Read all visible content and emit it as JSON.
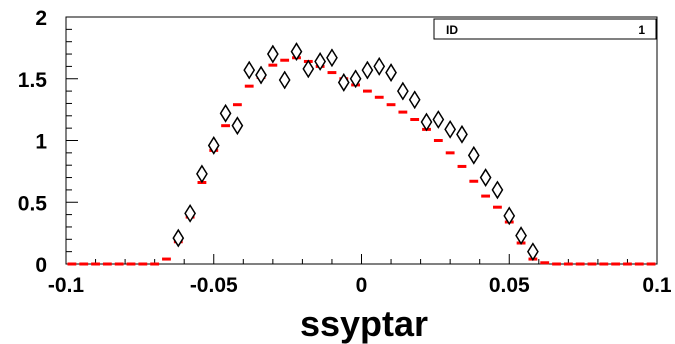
{
  "chart_data": {
    "type": "scatter",
    "xlabel": "ssyptar",
    "ylabel": "",
    "xlim": [
      -0.1,
      0.1
    ],
    "ylim": [
      0,
      2
    ],
    "x_ticks": [
      "-0.1",
      "-0.05",
      "0",
      "0.05",
      "0.1"
    ],
    "x_tick_values": [
      -0.1,
      -0.05,
      0,
      0.05,
      0.1
    ],
    "y_ticks": [
      "0",
      "0.5",
      "1",
      "1.5",
      "2"
    ],
    "y_tick_values": [
      0,
      0.5,
      1,
      1.5,
      2
    ],
    "stats_box": {
      "label": "ID",
      "value": "1"
    },
    "bin_width": 0.004,
    "series": [
      {
        "style": "red-histogram",
        "color": "#ff0000",
        "x": [
          -0.098,
          -0.094,
          -0.09,
          -0.086,
          -0.082,
          -0.078,
          -0.074,
          -0.07,
          -0.066,
          -0.062,
          -0.058,
          -0.054,
          -0.05,
          -0.046,
          -0.042,
          -0.038,
          -0.034,
          -0.03,
          -0.026,
          -0.022,
          -0.018,
          -0.014,
          -0.01,
          -0.006,
          -0.002,
          0.002,
          0.006,
          0.01,
          0.014,
          0.018,
          0.022,
          0.026,
          0.03,
          0.034,
          0.038,
          0.042,
          0.046,
          0.05,
          0.054,
          0.058,
          0.062,
          0.066,
          0.07,
          0.074,
          0.078,
          0.082,
          0.086,
          0.09,
          0.094,
          0.098
        ],
        "values": [
          0,
          0,
          0,
          0,
          0,
          0,
          0,
          0,
          0.04,
          0.18,
          0.38,
          0.66,
          0.92,
          1.12,
          1.29,
          1.44,
          1.51,
          1.61,
          1.65,
          1.67,
          1.64,
          1.6,
          1.55,
          1.5,
          1.45,
          1.4,
          1.35,
          1.29,
          1.23,
          1.17,
          1.09,
          1.0,
          0.9,
          0.79,
          0.67,
          0.55,
          0.46,
          0.34,
          0.17,
          0.04,
          0.01,
          0,
          0,
          0,
          0,
          0,
          0,
          0,
          0,
          0
        ]
      },
      {
        "style": "open-diamond-with-errors",
        "color": "#000000",
        "x": [
          -0.062,
          -0.058,
          -0.054,
          -0.05,
          -0.046,
          -0.042,
          -0.038,
          -0.034,
          -0.03,
          -0.026,
          -0.022,
          -0.018,
          -0.014,
          -0.01,
          -0.006,
          -0.002,
          0.002,
          0.006,
          0.01,
          0.014,
          0.018,
          0.022,
          0.026,
          0.03,
          0.034,
          0.038,
          0.042,
          0.046,
          0.05,
          0.054,
          0.058
        ],
        "values": [
          0.21,
          0.41,
          0.73,
          0.96,
          1.22,
          1.12,
          1.57,
          1.53,
          1.7,
          1.49,
          1.72,
          1.58,
          1.64,
          1.67,
          1.47,
          1.5,
          1.57,
          1.6,
          1.55,
          1.4,
          1.33,
          1.15,
          1.17,
          1.09,
          1.05,
          0.88,
          0.7,
          0.6,
          0.39,
          0.23,
          0.1
        ],
        "errors": [
          0.03,
          0.04,
          0.05,
          0.05,
          0.06,
          0.06,
          0.07,
          0.07,
          0.07,
          0.07,
          0.07,
          0.07,
          0.07,
          0.07,
          0.07,
          0.07,
          0.07,
          0.07,
          0.07,
          0.07,
          0.07,
          0.06,
          0.06,
          0.06,
          0.06,
          0.06,
          0.05,
          0.05,
          0.04,
          0.04,
          0.03
        ]
      }
    ]
  }
}
